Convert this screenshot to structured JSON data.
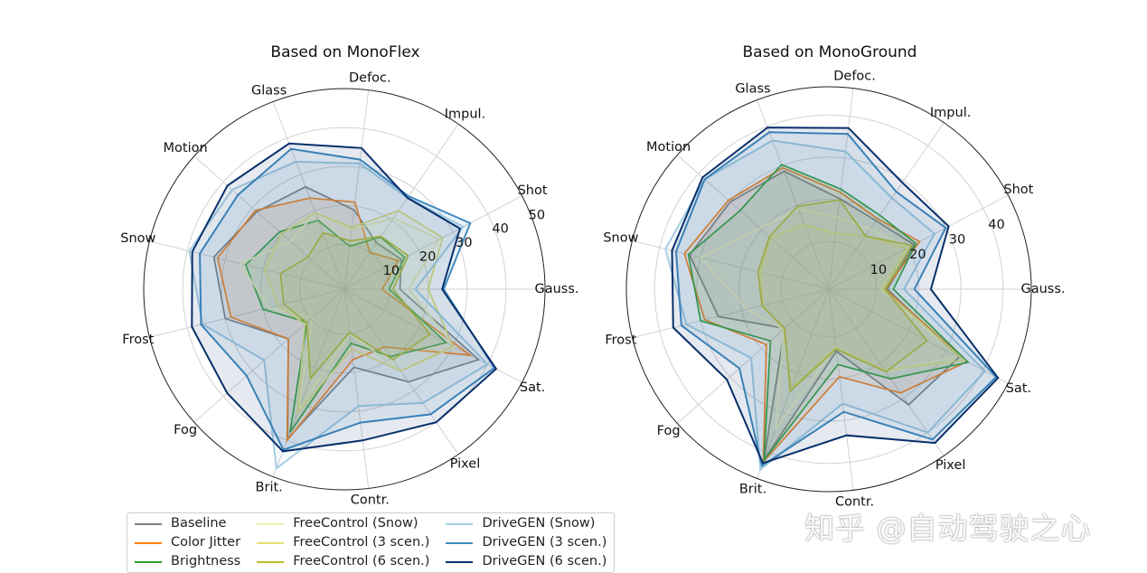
{
  "chart_data": [
    {
      "type": "radar",
      "title": "Based on MonoFlex",
      "categories": [
        "Gauss.",
        "Shot",
        "Impul.",
        "Defoc.",
        "Glass",
        "Motion",
        "Snow",
        "Frost",
        "Fog",
        "Brit.",
        "Contr.",
        "Pixel",
        "Sat."
      ],
      "rlim": [
        -1.5,
        50
      ],
      "rticks": [
        10,
        20,
        30,
        40,
        50
      ],
      "rtick_labels": [
        "10",
        "20",
        "30",
        "40",
        "50"
      ],
      "grid": true,
      "series": [
        {
          "name": "Baseline",
          "color": "#7f7f7f",
          "values": [
            12.8,
            15,
            13,
            19,
            26.6,
            28.5,
            33,
            30,
            17.7,
            39.5,
            18.7,
            27.4,
            37.4
          ]
        },
        {
          "name": "Color Jitter",
          "color": "#ff7f0e",
          "values": [
            8.2,
            14.2,
            10,
            21,
            23.5,
            29,
            32,
            28.5,
            17.7,
            40,
            16.7,
            16.5,
            35
          ]
        },
        {
          "name": "Brightness",
          "color": "#2ca02c",
          "values": [
            10,
            16,
            14.8,
            9.6,
            17.4,
            20.7,
            24.6,
            20,
            11.3,
            37.8,
            12.5,
            19.5,
            28
          ]
        },
        {
          "name": "FreeControl (Snow)",
          "color": "#eeeeb0",
          "values": [
            15,
            26,
            20.7,
            14,
            19.5,
            17,
            26,
            18.5,
            9.5,
            31.5,
            10,
            24,
            30.5
          ]
        },
        {
          "name": "FreeControl (3 scen.)",
          "color": "#e4e070",
          "values": [
            20,
            27,
            23,
            14.5,
            19.5,
            20,
            19.5,
            16,
            12,
            32.5,
            14,
            24,
            30
          ]
        },
        {
          "name": "FreeControl (6 scen.)",
          "color": "#bcbd22",
          "values": [
            11,
            17,
            15,
            11,
            14,
            11,
            15.4,
            14.5,
            11.4,
            23,
            9.7,
            20.5,
            23.3
          ]
        },
        {
          "name": "DriveGEN (Snow)",
          "color": "#a6cee3",
          "values": [
            16.7,
            33,
            27,
            31,
            33.5,
            37,
            39.5,
            36,
            26,
            47.7,
            28.7,
            34,
            40
          ]
        },
        {
          "name": "DriveGEN (3 scen.)",
          "color": "#3f8bc0",
          "values": [
            24,
            35,
            27.5,
            32,
            37,
            35,
            36.7,
            36.4,
            32,
            42.6,
            33,
            37.5,
            42
          ]
        },
        {
          "name": "DriveGEN (6 scen.)",
          "color": "#08306b",
          "values": [
            23.6,
            32,
            27,
            35,
            38.5,
            38.6,
            38.7,
            38.8,
            38.7,
            43,
            37.6,
            40,
            42.5
          ]
        }
      ]
    },
    {
      "type": "radar",
      "title": "Based on MonoGround",
      "categories": [
        "Gauss.",
        "Shot",
        "Impul.",
        "Defoc.",
        "Glass",
        "Motion",
        "Snow",
        "Frost",
        "Fog",
        "Brit.",
        "Contr.",
        "Pixel",
        "Sat."
      ],
      "rlim": [
        -1.3,
        46.7
      ],
      "rticks": [
        10,
        20,
        30,
        40
      ],
      "rtick_labels": [
        "10",
        "20",
        "30",
        "40"
      ],
      "grid": true,
      "series": [
        {
          "name": "Baseline",
          "color": "#7f7f7f",
          "values": [
            12.6,
            21.5,
            18.4,
            20.3,
            28.6,
            29.9,
            32.7,
            25.7,
            12.7,
            42,
            13.5,
            32,
            33.5
          ]
        },
        {
          "name": "Color Jitter",
          "color": "#ff7f0e",
          "values": [
            12.2,
            23,
            19,
            21.8,
            29.5,
            30.5,
            34,
            29,
            18.5,
            42.5,
            19.6,
            28.6,
            35.7
          ]
        },
        {
          "name": "Brightness",
          "color": "#2ca02c",
          "values": [
            14,
            22,
            20,
            22.6,
            30.3,
            26.8,
            33,
            30,
            17.2,
            42,
            16.7,
            24.5,
            36
          ]
        },
        {
          "name": "FreeControl (Snow)",
          "color": "#eeeeb0",
          "values": [
            11,
            20,
            16,
            16,
            19,
            20.5,
            30,
            18.7,
            13,
            34,
            12.5,
            22.5,
            33
          ]
        },
        {
          "name": "FreeControl (3 scen.)",
          "color": "#e4e070",
          "values": [
            11.5,
            19.5,
            14,
            12,
            15,
            17.2,
            15.4,
            14.8,
            13,
            24,
            12.7,
            22,
            35
          ]
        },
        {
          "name": "FreeControl (6 scen.)",
          "color": "#bcbd22",
          "values": [
            12,
            21,
            14,
            20,
            19.7,
            17.5,
            16,
            15,
            12.7,
            24.5,
            13,
            22.5,
            25
          ]
        },
        {
          "name": "DriveGEN (Snow)",
          "color": "#a6cee3",
          "values": [
            16.5,
            27,
            25,
            31.6,
            36.4,
            38,
            38.6,
            33.5,
            23.3,
            44.5,
            26,
            40,
            40.5
          ]
        },
        {
          "name": "DriveGEN (3 scen.)",
          "color": "#3f8bc0",
          "values": [
            19,
            30,
            26.8,
            35.8,
            38.5,
            38,
            36,
            34.7,
            27,
            43.5,
            28,
            42,
            43.5
          ]
        },
        {
          "name": "DriveGEN (6 scen.)",
          "color": "#08306b",
          "values": [
            22.9,
            30.8,
            29.4,
            37.2,
            39.7,
            38.7,
            37,
            36.7,
            31,
            42.8,
            33.6,
            43,
            44
          ]
        }
      ]
    }
  ],
  "watermark": "知乎 @自动驾驶之心"
}
